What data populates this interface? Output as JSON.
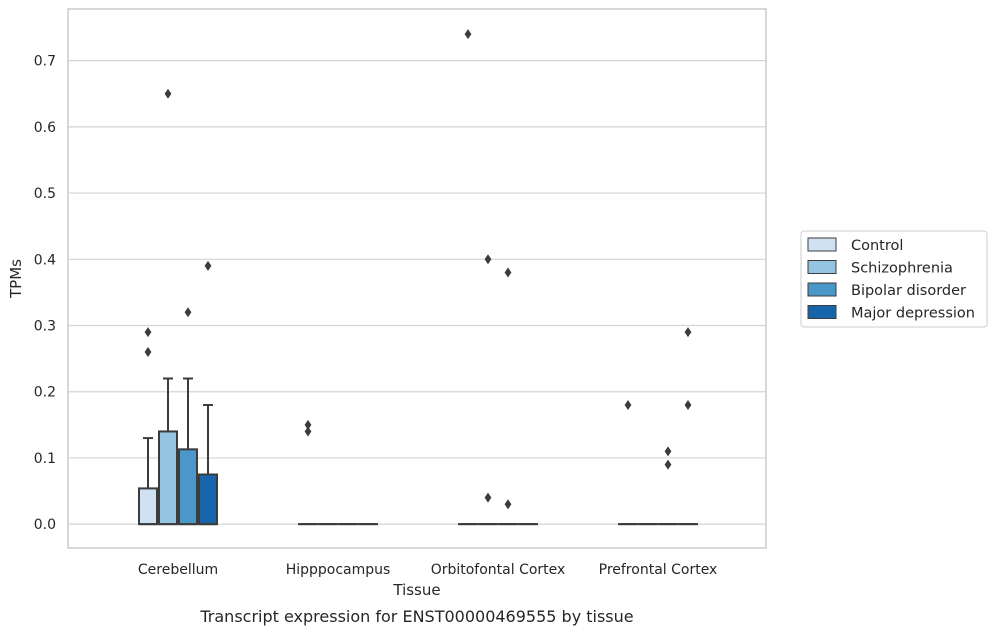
{
  "chart_data": {
    "type": "boxplot",
    "caption": "Transcript expression for ENST00000469555 by tissue",
    "xlabel": "Tissue",
    "ylabel": "TPMs",
    "ylim": [
      -0.036,
      0.778
    ],
    "yticks": [
      0.0,
      0.1,
      0.2,
      0.3,
      0.4,
      0.5,
      0.6,
      0.7
    ],
    "ytick_labels": [
      "0.0",
      "0.1",
      "0.2",
      "0.3",
      "0.4",
      "0.5",
      "0.6",
      "0.7"
    ],
    "categories": [
      "Cerebellum",
      "Hipppocampus",
      "Orbitofontal Cortex",
      "Prefrontal Cortex"
    ],
    "grid": "horizontal",
    "legend_position": "right",
    "series": [
      {
        "name": "Control",
        "color": "#d0e1f2",
        "boxes": [
          {
            "q1": 0.0,
            "median": 0.0,
            "q3": 0.054,
            "whisker_low": 0.0,
            "whisker_high": 0.13,
            "outliers": [
              0.26,
              0.29
            ]
          },
          {
            "q1": 0.0,
            "median": 0.0,
            "q3": 0.0,
            "whisker_low": 0.0,
            "whisker_high": 0.0,
            "outliers": [
              0.14,
              0.15
            ]
          },
          {
            "q1": 0.0,
            "median": 0.0,
            "q3": 0.0,
            "whisker_low": 0.0,
            "whisker_high": 0.0,
            "outliers": [
              0.74
            ]
          },
          {
            "q1": 0.0,
            "median": 0.0,
            "q3": 0.0,
            "whisker_low": 0.0,
            "whisker_high": 0.0,
            "outliers": [
              0.18
            ]
          }
        ]
      },
      {
        "name": "Schizophrenia",
        "color": "#94c4df",
        "boxes": [
          {
            "q1": 0.0,
            "median": 0.0,
            "q3": 0.14,
            "whisker_low": 0.0,
            "whisker_high": 0.22,
            "outliers": [
              0.65
            ]
          },
          {
            "q1": 0.0,
            "median": 0.0,
            "q3": 0.0,
            "whisker_low": 0.0,
            "whisker_high": 0.0,
            "outliers": []
          },
          {
            "q1": 0.0,
            "median": 0.0,
            "q3": 0.0,
            "whisker_low": 0.0,
            "whisker_high": 0.0,
            "outliers": [
              0.04,
              0.4
            ]
          },
          {
            "q1": 0.0,
            "median": 0.0,
            "q3": 0.0,
            "whisker_low": 0.0,
            "whisker_high": 0.0,
            "outliers": []
          }
        ]
      },
      {
        "name": "Bipolar disorder",
        "color": "#4a98c9",
        "boxes": [
          {
            "q1": 0.0,
            "median": 0.0,
            "q3": 0.113,
            "whisker_low": 0.0,
            "whisker_high": 0.22,
            "outliers": [
              0.32
            ]
          },
          {
            "q1": 0.0,
            "median": 0.0,
            "q3": 0.0,
            "whisker_low": 0.0,
            "whisker_high": 0.0,
            "outliers": []
          },
          {
            "q1": 0.0,
            "median": 0.0,
            "q3": 0.0,
            "whisker_low": 0.0,
            "whisker_high": 0.0,
            "outliers": [
              0.03,
              0.38
            ]
          },
          {
            "q1": 0.0,
            "median": 0.0,
            "q3": 0.0,
            "whisker_low": 0.0,
            "whisker_high": 0.0,
            "outliers": [
              0.09,
              0.11
            ]
          }
        ]
      },
      {
        "name": "Major depression",
        "color": "#1764ab",
        "boxes": [
          {
            "q1": 0.0,
            "median": 0.0,
            "q3": 0.075,
            "whisker_low": 0.0,
            "whisker_high": 0.18,
            "outliers": [
              0.39
            ]
          },
          {
            "q1": 0.0,
            "median": 0.0,
            "q3": 0.0,
            "whisker_low": 0.0,
            "whisker_high": 0.0,
            "outliers": []
          },
          {
            "q1": 0.0,
            "median": 0.0,
            "q3": 0.0,
            "whisker_low": 0.0,
            "whisker_high": 0.0,
            "outliers": []
          },
          {
            "q1": 0.0,
            "median": 0.0,
            "q3": 0.0,
            "whisker_low": 0.0,
            "whisker_high": 0.0,
            "outliers": [
              0.18,
              0.29
            ]
          }
        ]
      }
    ]
  }
}
